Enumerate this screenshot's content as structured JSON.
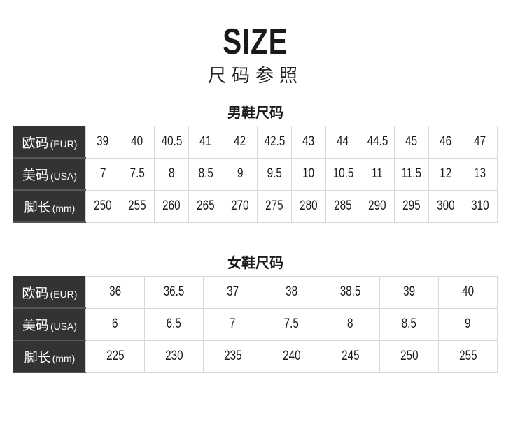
{
  "header": {
    "title": "SIZE",
    "subtitle": "尺码参照"
  },
  "men": {
    "title": "男鞋尺码",
    "rows": [
      {
        "label": "欧码",
        "unit": "(EUR)",
        "values": [
          "39",
          "40",
          "40.5",
          "41",
          "42",
          "42.5",
          "43",
          "44",
          "44.5",
          "45",
          "46",
          "47"
        ]
      },
      {
        "label": "美码",
        "unit": "(USA)",
        "values": [
          "7",
          "7.5",
          "8",
          "8.5",
          "9",
          "9.5",
          "10",
          "10.5",
          "11",
          "11.5",
          "12",
          "13"
        ]
      },
      {
        "label": "脚长",
        "unit": "(mm)",
        "values": [
          "250",
          "255",
          "260",
          "265",
          "270",
          "275",
          "280",
          "285",
          "290",
          "295",
          "300",
          "310"
        ]
      }
    ]
  },
  "women": {
    "title": "女鞋尺码",
    "rows": [
      {
        "label": "欧码",
        "unit": "(EUR)",
        "values": [
          "36",
          "36.5",
          "37",
          "38",
          "38.5",
          "39",
          "40"
        ]
      },
      {
        "label": "美码",
        "unit": "(USA)",
        "values": [
          "6",
          "6.5",
          "7",
          "7.5",
          "8",
          "8.5",
          "9"
        ]
      },
      {
        "label": "脚长",
        "unit": "(mm)",
        "values": [
          "225",
          "230",
          "235",
          "240",
          "245",
          "250",
          "255"
        ]
      }
    ]
  }
}
